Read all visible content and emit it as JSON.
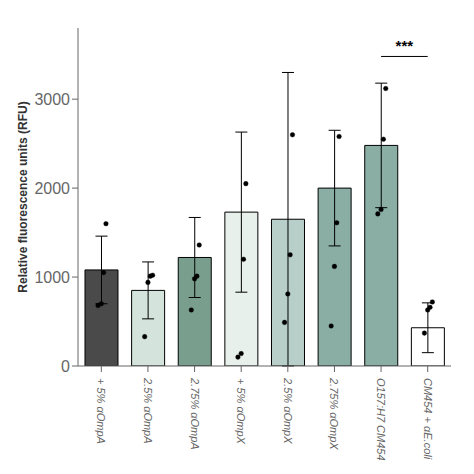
{
  "chart_data": {
    "type": "bar",
    "categories": [
      "+ 5% αOmpA",
      "2.5% αOmpA",
      "2.75% αOmpA",
      "+ 5% αOmpX",
      "2.5% αOmpX",
      "2.75% αOmpX",
      "O157:H7 CM454",
      "CM454 + αE.coli"
    ],
    "values": [
      1080,
      850,
      1220,
      1730,
      1650,
      2000,
      2480,
      430
    ],
    "errors": [
      380,
      320,
      450,
      900,
      1650,
      650,
      700,
      280
    ],
    "colors": [
      "#4a4a4a",
      "#d4e4dc",
      "#7a9e8e",
      "#e8f0ec",
      "#b8cec8",
      "#8aaea4",
      "#8aaea4",
      "#ffffff"
    ],
    "points": [
      [
        680,
        700,
        1050,
        1600
      ],
      [
        330,
        940,
        1010,
        1020
      ],
      [
        630,
        980,
        1010,
        1360
      ],
      [
        100,
        140,
        1200,
        2050
      ],
      [
        490,
        810,
        1250,
        2600
      ],
      [
        450,
        1120,
        1610,
        2580
      ],
      [
        1710,
        1760,
        2550,
        3120
      ],
      [
        370,
        630,
        660,
        720
      ]
    ],
    "ylabel": "Relative fluorescence units (RFU)",
    "ylim": [
      0,
      3800
    ],
    "yticks": [
      0,
      1000,
      2000,
      3000
    ],
    "grid": false,
    "annotations": [
      {
        "text": "***",
        "from": "O157:H7 CM454",
        "to": "CM454 + αE.coli",
        "y": 3480
      }
    ]
  }
}
